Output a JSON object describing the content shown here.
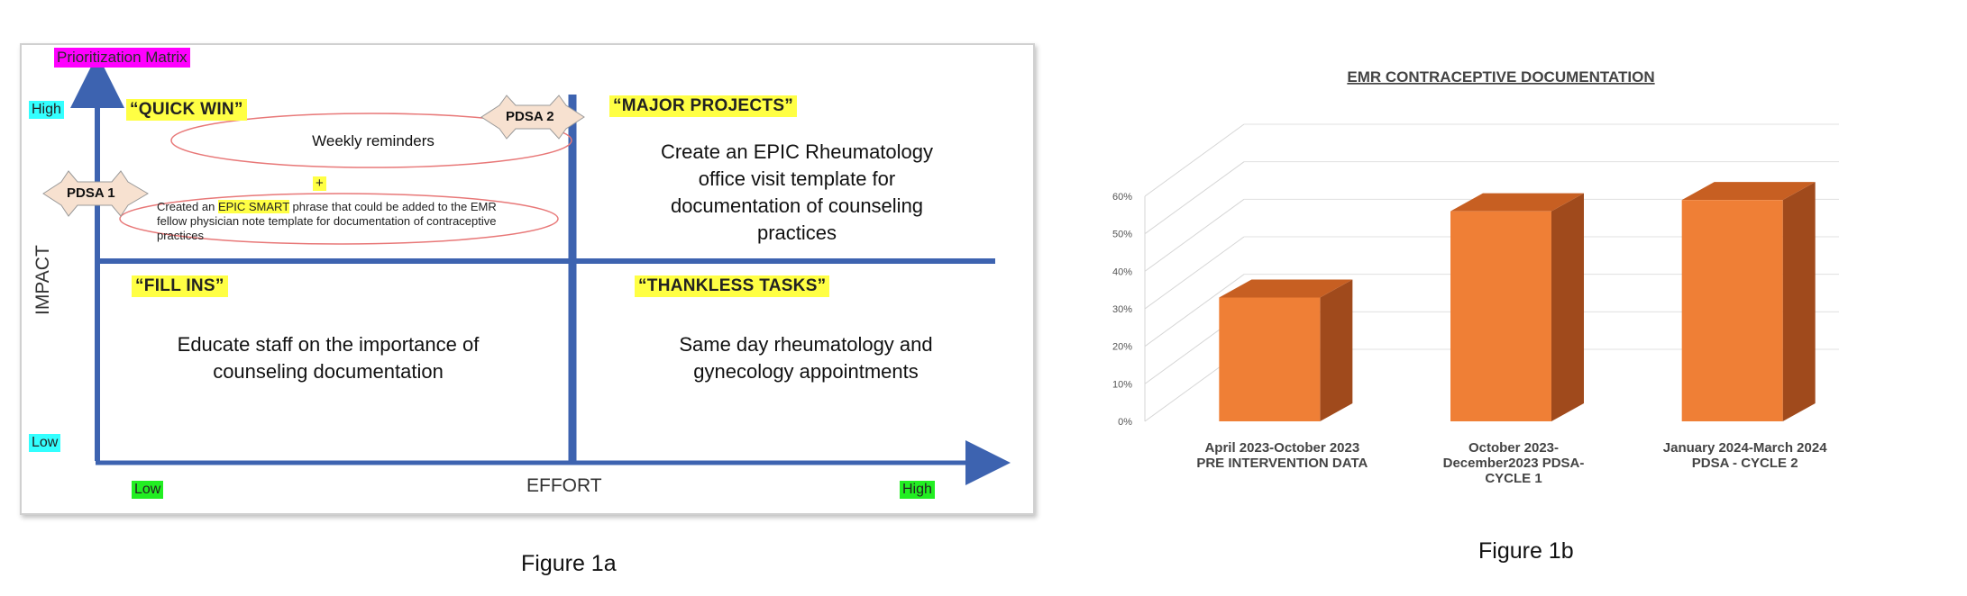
{
  "matrix": {
    "title": "Prioritization Matrix",
    "y_axis_label": "IMPACT",
    "x_axis_label": "EFFORT",
    "y_high": "High",
    "y_low": "Low",
    "x_low": "Low",
    "x_high": "High",
    "quadrants": {
      "quick_win": {
        "title": "“QUICK WIN”",
        "item1": "Weekly reminders",
        "plus": "+",
        "item2_pre": "Created an ",
        "item2_highlight": "EPIC SMART",
        "item2_line1_post": " phrase that could be added to the EMR",
        "item2_line2": "fellow physician note template for documentation of contraceptive",
        "item2_line3": "practices"
      },
      "major_projects": {
        "title": "“MAJOR PROJECTS”",
        "line1": "Create an EPIC Rheumatology",
        "line2": "office visit template for",
        "line3": "documentation of counseling",
        "line4": "practices"
      },
      "fill_ins": {
        "title": "“FILL INS”",
        "line1": "Educate staff on the importance of",
        "line2": "counseling documentation"
      },
      "thankless_tasks": {
        "title": "“THANKLESS TASKS”",
        "line1": "Same day rheumatology and",
        "line2": "gynecology appointments"
      }
    },
    "badges": {
      "pdsa1": "PDSA 1",
      "pdsa2": "PDSA 2"
    },
    "colors": {
      "axis": "#3d63b0",
      "ellipse": "#e87878",
      "title_bg": "#ff00ff",
      "quad_bg": "#ffff44"
    }
  },
  "chart_data": {
    "type": "bar",
    "title": "EMR CONTRACEPTIVE DOCUMENTATION",
    "categories": [
      [
        "April 2023-October 2023",
        "PRE INTERVENTION DATA"
      ],
      [
        "October 2023-",
        "December2023 PDSA-",
        "CYCLE 1"
      ],
      [
        "January 2024-March 2024",
        "PDSA - CYCLE 2"
      ]
    ],
    "values": [
      33,
      56,
      59
    ],
    "ylim": [
      0,
      60
    ],
    "yticks": [
      0,
      10,
      20,
      30,
      40,
      50,
      60
    ],
    "ytick_labels": [
      "0%",
      "10%",
      "20%",
      "30%",
      "40%",
      "50%",
      "60%"
    ],
    "grid": true,
    "bar_color": "#ef7f36",
    "bar_side_color": "#a04a1c",
    "bar_top_color": "#c75f22"
  },
  "captions": {
    "fig1a": "Figure 1a",
    "fig1b": "Figure 1b"
  }
}
